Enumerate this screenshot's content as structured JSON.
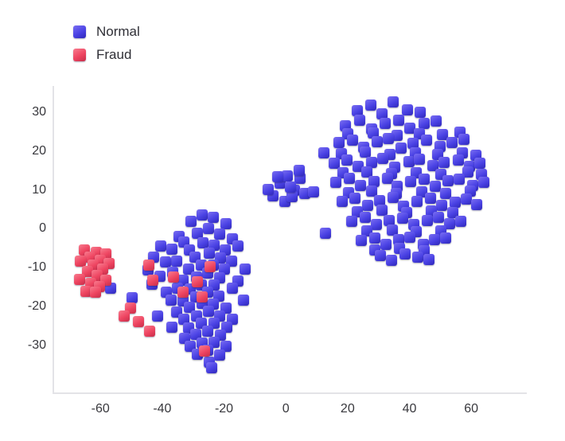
{
  "legend": {
    "items": [
      {
        "label": "Normal",
        "key": "normal"
      },
      {
        "label": "Fraud",
        "key": "fraud"
      }
    ]
  },
  "chart_data": {
    "type": "scatter",
    "title": "",
    "xlabel": "",
    "ylabel": "",
    "xlim": [
      -75,
      78
    ],
    "ylim": [
      -42,
      37
    ],
    "x_ticks": [
      -60,
      -40,
      -20,
      0,
      20,
      40,
      60
    ],
    "y_ticks": [
      -30,
      -20,
      -10,
      0,
      10,
      20,
      30
    ],
    "grid": false,
    "legend_position": "top-left",
    "marker_style": "3d-square",
    "colors": {
      "normal": {
        "base": "#4a42e4",
        "light": "#7b6ff2",
        "dark": "#2f28b8"
      },
      "fraud": {
        "base": "#ee4561",
        "light": "#f87d90",
        "dark": "#c62d49"
      }
    },
    "series": [
      {
        "name": "Normal",
        "color_key": "normal",
        "points": [
          [
            23.2,
            30.6
          ],
          [
            27.5,
            32.1
          ],
          [
            31.1,
            29.8
          ],
          [
            34.8,
            32.8
          ],
          [
            39.3,
            30.9
          ],
          [
            43.6,
            30.2
          ],
          [
            19.4,
            26.8
          ],
          [
            23.8,
            28.2
          ],
          [
            27.9,
            25.9
          ],
          [
            32.2,
            27.3
          ],
          [
            36.5,
            28.1
          ],
          [
            40.1,
            26.2
          ],
          [
            44.9,
            27.4
          ],
          [
            48.6,
            27.9
          ],
          [
            20.1,
            24.6
          ],
          [
            28.4,
            24.9
          ],
          [
            35.9,
            24.3
          ],
          [
            43.1,
            24.7
          ],
          [
            50.6,
            24.4
          ],
          [
            56.4,
            25.1
          ],
          [
            17.2,
            22.4
          ],
          [
            21.5,
            23.1
          ],
          [
            25.3,
            21.2
          ],
          [
            29.6,
            22.6
          ],
          [
            33.1,
            23.4
          ],
          [
            37.4,
            20.9
          ],
          [
            41.2,
            22.2
          ],
          [
            45.6,
            23.0
          ],
          [
            49.8,
            21.4
          ],
          [
            53.9,
            22.5
          ],
          [
            57.7,
            23.2
          ],
          [
            17.9,
            19.6
          ],
          [
            25.8,
            19.9
          ],
          [
            33.6,
            19.4
          ],
          [
            41.9,
            19.7
          ],
          [
            49.2,
            19.3
          ],
          [
            57.1,
            19.8
          ],
          [
            61.6,
            19.2
          ],
          [
            15.6,
            17.1
          ],
          [
            19.8,
            18.0
          ],
          [
            23.4,
            16.3
          ],
          [
            27.7,
            17.2
          ],
          [
            31.5,
            18.3
          ],
          [
            35.2,
            16.1
          ],
          [
            39.8,
            17.5
          ],
          [
            43.3,
            18.1
          ],
          [
            47.6,
            16.4
          ],
          [
            51.2,
            17.3
          ],
          [
            55.8,
            17.9
          ],
          [
            59.4,
            16.2
          ],
          [
            62.9,
            17.0
          ],
          [
            18.4,
            14.6
          ],
          [
            26.2,
            14.9
          ],
          [
            34.1,
            14.4
          ],
          [
            42.2,
            14.7
          ],
          [
            50.1,
            14.3
          ],
          [
            58.9,
            14.8
          ],
          [
            63.2,
            14.2
          ],
          [
            16.3,
            12.2
          ],
          [
            20.6,
            13.1
          ],
          [
            24.2,
            11.3
          ],
          [
            28.5,
            12.4
          ],
          [
            32.8,
            13.2
          ],
          [
            36.1,
            11.1
          ],
          [
            40.4,
            12.3
          ],
          [
            44.7,
            13.0
          ],
          [
            48.3,
            11.2
          ],
          [
            52.6,
            12.5
          ],
          [
            56.2,
            12.9
          ],
          [
            60.5,
            11.4
          ],
          [
            64.1,
            12.1
          ],
          [
            20.3,
            9.6
          ],
          [
            27.9,
            9.9
          ],
          [
            35.7,
            9.4
          ],
          [
            43.9,
            9.7
          ],
          [
            51.7,
            9.3
          ],
          [
            59.6,
            9.9
          ],
          [
            18.2,
            7.3
          ],
          [
            22.4,
            8.1
          ],
          [
            26.6,
            6.2
          ],
          [
            30.3,
            7.4
          ],
          [
            34.6,
            8.2
          ],
          [
            38.2,
            6.1
          ],
          [
            42.5,
            7.2
          ],
          [
            46.8,
            8.0
          ],
          [
            50.4,
            6.3
          ],
          [
            54.7,
            7.1
          ],
          [
            58.3,
            7.8
          ],
          [
            61.8,
            6.4
          ],
          [
            23.1,
            4.6
          ],
          [
            31.2,
            4.9
          ],
          [
            39.1,
            4.4
          ],
          [
            47.2,
            4.7
          ],
          [
            54.1,
            4.3
          ],
          [
            21.3,
            2.2
          ],
          [
            25.6,
            3.1
          ],
          [
            29.2,
            1.3
          ],
          [
            33.5,
            2.4
          ],
          [
            37.8,
            3.0
          ],
          [
            41.4,
            1.2
          ],
          [
            45.7,
            2.3
          ],
          [
            49.3,
            3.2
          ],
          [
            52.9,
            1.4
          ],
          [
            56.6,
            2.1
          ],
          [
            26.3,
            -0.4
          ],
          [
            34.4,
            -0.1
          ],
          [
            42.3,
            -0.6
          ],
          [
            50.2,
            -0.3
          ],
          [
            24.4,
            -2.8
          ],
          [
            28.7,
            -2.1
          ],
          [
            32.3,
            -3.9
          ],
          [
            36.6,
            -2.7
          ],
          [
            40.2,
            -1.9
          ],
          [
            44.5,
            -3.8
          ],
          [
            48.1,
            -2.6
          ],
          [
            51.8,
            -2.2
          ],
          [
            28.8,
            -5.2
          ],
          [
            36.9,
            -4.9
          ],
          [
            44.8,
            -5.4
          ],
          [
            30.5,
            -6.8
          ],
          [
            34.2,
            -7.9
          ],
          [
            38.5,
            -6.2
          ],
          [
            42.8,
            -7.1
          ],
          [
            46.4,
            -7.7
          ],
          [
            -4.2,
            8.6
          ],
          [
            -1.8,
            11.9
          ],
          [
            0.5,
            13.8
          ],
          [
            2.8,
            10.2
          ],
          [
            4.6,
            13.1
          ],
          [
            -0.3,
            7.2
          ],
          [
            2.1,
            8.4
          ],
          [
            4.4,
            15.2
          ],
          [
            -2.6,
            13.6
          ],
          [
            6.2,
            9.3
          ],
          [
            1.4,
            11.0
          ],
          [
            -5.8,
            10.4
          ],
          [
            12.4,
            19.8
          ],
          [
            12.8,
            -0.9
          ],
          [
            8.9,
            9.7
          ],
          [
            -27.2,
            3.8
          ],
          [
            -23.5,
            3.1
          ],
          [
            -30.8,
            2.2
          ],
          [
            -19.3,
            1.4
          ],
          [
            -25.1,
            0.3
          ],
          [
            -28.7,
            -0.9
          ],
          [
            -21.4,
            -1.2
          ],
          [
            -34.6,
            -1.8
          ],
          [
            -17.2,
            -2.3
          ],
          [
            -33.1,
            -3.2
          ],
          [
            -26.8,
            -3.4
          ],
          [
            -23.2,
            -4.1
          ],
          [
            -40.6,
            -4.3
          ],
          [
            -15.4,
            -4.2
          ],
          [
            -36.9,
            -5.1
          ],
          [
            -31.2,
            -5.3
          ],
          [
            -19.6,
            -5.2
          ],
          [
            -24.8,
            -6.1
          ],
          [
            -29.3,
            -7.2
          ],
          [
            -21.1,
            -7.3
          ],
          [
            -42.8,
            -7.1
          ],
          [
            -35.4,
            -8.2
          ],
          [
            -17.6,
            -8.1
          ],
          [
            -38.9,
            -8.3
          ],
          [
            -27.3,
            -9.2
          ],
          [
            -23.6,
            -9.1
          ],
          [
            -31.4,
            -10.2
          ],
          [
            -13.2,
            -10.1
          ],
          [
            -44.6,
            -10.3
          ],
          [
            -19.8,
            -10.2
          ],
          [
            -36.7,
            -11.1
          ],
          [
            -25.2,
            -11.3
          ],
          [
            -28.9,
            -12.2
          ],
          [
            -40.8,
            -12.1
          ],
          [
            -21.3,
            -12.4
          ],
          [
            -33.2,
            -13.1
          ],
          [
            -15.6,
            -13.2
          ],
          [
            -27.4,
            -14.2
          ],
          [
            -23.1,
            -14.3
          ],
          [
            -43.3,
            -14.1
          ],
          [
            -35.2,
            -15.2
          ],
          [
            -30.9,
            -15.3
          ],
          [
            -17.3,
            -15.1
          ],
          [
            -38.6,
            -16.2
          ],
          [
            -25.4,
            -16.1
          ],
          [
            -56.8,
            -15.1
          ],
          [
            -29.2,
            -17.3
          ],
          [
            -21.6,
            -17.2
          ],
          [
            -37.1,
            -18.1
          ],
          [
            -33.4,
            -18.3
          ],
          [
            -13.8,
            -18.2
          ],
          [
            -49.8,
            -17.6
          ],
          [
            -27.2,
            -19.1
          ],
          [
            -23.4,
            -19.3
          ],
          [
            -31.2,
            -20.1
          ],
          [
            -19.4,
            -20.2
          ],
          [
            -35.3,
            -21.2
          ],
          [
            -25.1,
            -21.1
          ],
          [
            -28.8,
            -22.3
          ],
          [
            -21.4,
            -22.2
          ],
          [
            -41.4,
            -22.4
          ],
          [
            -33.1,
            -23.2
          ],
          [
            -17.2,
            -23.1
          ],
          [
            -27.3,
            -24.2
          ],
          [
            -23.2,
            -24.1
          ],
          [
            -36.8,
            -25.1
          ],
          [
            -31.4,
            -25.3
          ],
          [
            -19.2,
            -25.2
          ],
          [
            -25.3,
            -26.2
          ],
          [
            -29.1,
            -27.1
          ],
          [
            -21.2,
            -27.3
          ],
          [
            -32.8,
            -28.1
          ],
          [
            -27.1,
            -29.2
          ],
          [
            -23.3,
            -29.1
          ],
          [
            -30.9,
            -30.2
          ],
          [
            -19.3,
            -30.1
          ],
          [
            -25.2,
            -31.2
          ],
          [
            -28.7,
            -32.1
          ],
          [
            -21.5,
            -32.3
          ],
          [
            -24.8,
            -34.1
          ],
          [
            -23.9,
            -35.6
          ]
        ]
      },
      {
        "name": "Fraud",
        "color_key": "fraud",
        "points": [
          [
            -65.2,
            -5.3
          ],
          [
            -61.4,
            -5.8
          ],
          [
            -58.2,
            -6.2
          ],
          [
            -63.3,
            -7.1
          ],
          [
            -60.1,
            -7.9
          ],
          [
            -66.4,
            -8.2
          ],
          [
            -57.2,
            -8.8
          ],
          [
            -62.3,
            -9.2
          ],
          [
            -59.4,
            -10.1
          ],
          [
            -64.2,
            -10.9
          ],
          [
            -61.1,
            -11.8
          ],
          [
            -66.8,
            -12.9
          ],
          [
            -58.3,
            -13.1
          ],
          [
            -63.1,
            -13.9
          ],
          [
            -60.2,
            -14.8
          ],
          [
            -64.8,
            -15.9
          ],
          [
            -61.6,
            -16.2
          ],
          [
            -44.3,
            -9.2
          ],
          [
            -43.1,
            -13.1
          ],
          [
            -36.4,
            -12.3
          ],
          [
            -33.2,
            -16.2
          ],
          [
            -28.6,
            -13.4
          ],
          [
            -27.1,
            -17.4
          ],
          [
            -24.6,
            -9.6
          ],
          [
            -50.2,
            -20.3
          ],
          [
            -52.4,
            -22.2
          ],
          [
            -47.6,
            -23.8
          ],
          [
            -44.1,
            -26.2
          ],
          [
            -26.3,
            -31.4
          ]
        ]
      }
    ]
  }
}
